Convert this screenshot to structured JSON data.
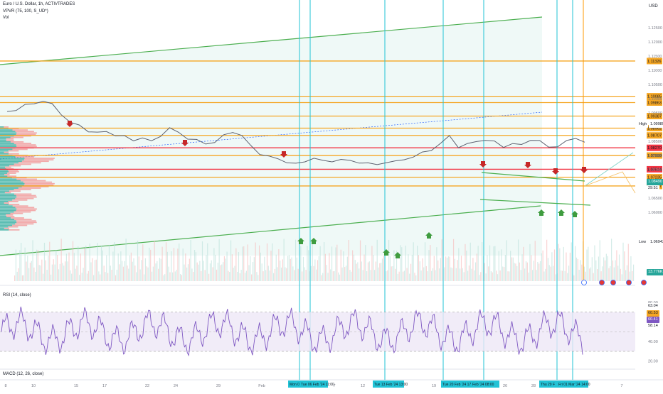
{
  "legend": {
    "symbol": "Euro / U.S. Dollar, 1h, ACTIVTRADES",
    "vpvr": "VPVR (75, 100, S_UD*)",
    "vol": "Vol"
  },
  "currency": "USD",
  "rsi_title": "RSI (14, close)",
  "macd_title": "MACD (12, 26, close)",
  "colors": {
    "level": "#f5a623",
    "red_level": "#f23645",
    "green": "#4caf50",
    "cyan": "#22c3d6",
    "arrow_up": "#3f9c3f",
    "arrow_down": "#c62828",
    "rsi_line": "#7e57c2"
  },
  "chart_data": [
    {
      "type": "line",
      "title": "Euro / U.S. Dollar, 1h, ACTIVTRADES",
      "ylim": [
        1.06,
        1.1325
      ],
      "y_ticks": [
        "1.12500",
        "1.12000",
        "1.11500",
        "1.11000",
        "1.10500",
        "1.10000",
        "1.09500",
        "1.09000",
        "1.08500",
        "1.08000",
        "1.07500",
        "1.07000",
        "1.06500",
        "1.06000"
      ],
      "x_ticks": [
        "8",
        "10",
        "15",
        "17",
        "22",
        "24",
        "29",
        "Feb",
        "5",
        "7",
        "12",
        "14",
        "19",
        "21",
        "26",
        "28",
        "5",
        "7"
      ],
      "price_levels": [
        {
          "label": "1.11326",
          "value": 1.11326,
          "color": "orange"
        },
        {
          "label": "1.10085",
          "value": 1.10085,
          "color": "orange"
        },
        {
          "label": "1.09863",
          "value": 1.09863,
          "color": "orange"
        },
        {
          "label": "1.09387",
          "value": 1.09387,
          "color": "orange"
        },
        {
          "label": "1.08962",
          "value": 1.08962,
          "color": "orange"
        },
        {
          "label": "1.08707",
          "value": 1.08707,
          "color": "orange"
        },
        {
          "label": "1.08270",
          "value": 1.0827,
          "color": "red"
        },
        {
          "label": "1.07999",
          "value": 1.07999,
          "color": "orange"
        },
        {
          "label": "1.07514",
          "value": 1.07514,
          "color": "red"
        },
        {
          "label": "1.07235",
          "value": 1.07235,
          "color": "orange"
        },
        {
          "label": "1.06927",
          "value": 1.06927,
          "color": "orange"
        }
      ],
      "high": {
        "label": "High",
        "value": "1.09989"
      },
      "low": {
        "label": "Low",
        "value": "1.06943"
      },
      "current": {
        "price": "1.08490",
        "countdown": "29:51"
      },
      "volume_label": "13.776K",
      "series": [
        {
          "values": [
            1.0955,
            1.0962,
            1.0975,
            1.0985,
            1.0992,
            1.0978,
            1.0948,
            1.0915,
            1.0905,
            1.0888,
            1.0878,
            1.0885,
            1.0872,
            1.0865,
            1.0855,
            1.0862,
            1.0848,
            1.0872,
            1.0895,
            1.088,
            1.0862,
            1.0852,
            1.0842,
            1.0848,
            1.0868,
            1.0885,
            1.087,
            1.0832,
            1.0808,
            1.0795,
            1.0788,
            1.0778,
            1.0768,
            1.078,
            1.0792,
            1.0778,
            1.0782,
            1.0785,
            1.078,
            1.0778,
            1.077,
            1.0768,
            1.0778,
            1.0776,
            1.0788,
            1.0795,
            1.0808,
            1.0822,
            1.084,
            1.0868,
            1.0832,
            1.0838,
            1.085,
            1.0856,
            1.0846,
            1.0832,
            1.0842,
            1.0835,
            1.0858,
            1.085,
            1.0828,
            1.0835,
            1.0848,
            1.0862,
            1.0849
          ]
        }
      ]
    },
    {
      "type": "line",
      "title": "RSI (14, close)",
      "ylim": [
        15,
        85
      ],
      "y_ticks": [
        "80.00",
        "60.00",
        "40.00",
        "20.00"
      ],
      "band": [
        70,
        30
      ],
      "values_label": [
        "63.04",
        "60.53",
        "60.41",
        "58.14"
      ]
    }
  ],
  "annotations": {
    "vertical_lines": [
      "Mon 05",
      "Tue 06 Feb '24 11:00",
      "Tue 13 Feb '24 13:00",
      "Tue 20 Feb '24 17:00",
      "Feb '24 08:00",
      "Thu 29 F",
      "Fri 01 Mar '24 14:00"
    ]
  }
}
